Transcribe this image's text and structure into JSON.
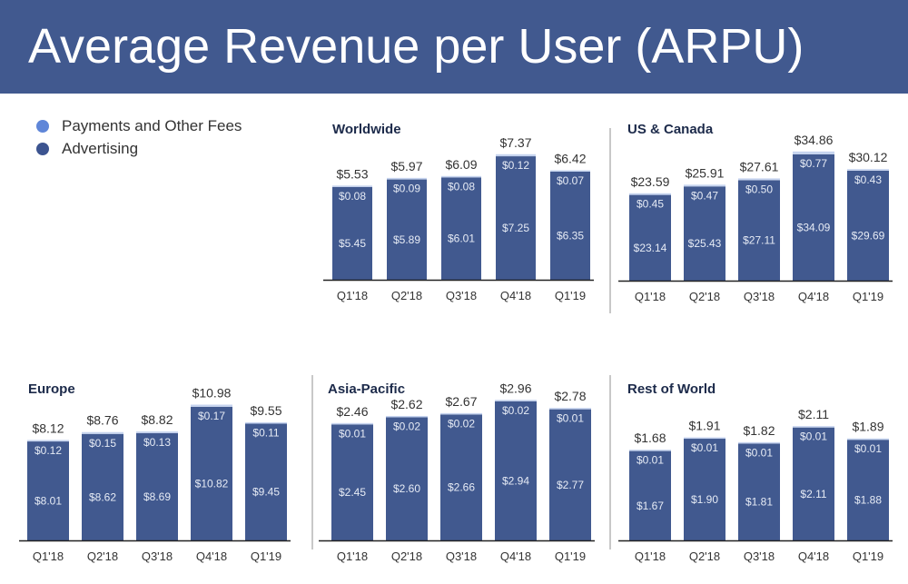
{
  "header": {
    "title": "Average Revenue per User (ARPU)"
  },
  "colors": {
    "advertising": "#41598f",
    "payments": "#c6d4ef",
    "legend_payments": "#5f86d8",
    "legend_advertising": "#3c5490"
  },
  "legend": [
    {
      "label": "Payments and Other Fees",
      "key": "payments"
    },
    {
      "label": "Advertising",
      "key": "advertising"
    }
  ],
  "chart_data": [
    {
      "type": "bar",
      "stacked": true,
      "title": "Worldwide",
      "categories": [
        "Q1'18",
        "Q2'18",
        "Q3'18",
        "Q4'18",
        "Q1'19"
      ],
      "series": [
        {
          "name": "Advertising",
          "values": [
            5.45,
            5.89,
            6.01,
            7.25,
            6.35
          ],
          "labels": [
            "$5.45",
            "$5.89",
            "$6.01",
            "$7.25",
            "$6.35"
          ]
        },
        {
          "name": "Payments and Other Fees",
          "values": [
            0.08,
            0.09,
            0.08,
            0.12,
            0.07
          ],
          "labels": [
            "$0.08",
            "$0.09",
            "$0.08",
            "$0.12",
            "$0.07"
          ]
        }
      ],
      "totals": [
        "$5.53",
        "$5.97",
        "$6.09",
        "$7.37",
        "$6.42"
      ],
      "total_values": [
        5.53,
        5.97,
        6.09,
        7.37,
        6.42
      ],
      "ylim": [
        0,
        8.0
      ]
    },
    {
      "type": "bar",
      "stacked": true,
      "title": "US & Canada",
      "categories": [
        "Q1'18",
        "Q2'18",
        "Q3'18",
        "Q4'18",
        "Q1'19"
      ],
      "series": [
        {
          "name": "Advertising",
          "values": [
            23.14,
            25.43,
            27.11,
            34.09,
            29.69
          ],
          "labels": [
            "$23.14",
            "$25.43",
            "$27.11",
            "$34.09",
            "$29.69"
          ]
        },
        {
          "name": "Payments and Other Fees",
          "values": [
            0.45,
            0.47,
            0.5,
            0.77,
            0.43
          ],
          "labels": [
            "$0.45",
            "$0.47",
            "$0.50",
            "$0.77",
            "$0.43"
          ]
        }
      ],
      "totals": [
        "$23.59",
        "$25.91",
        "$27.61",
        "$34.86",
        "$30.12"
      ],
      "total_values": [
        23.59,
        25.91,
        27.61,
        34.86,
        30.12
      ],
      "ylim": [
        0,
        38.0
      ]
    },
    {
      "type": "bar",
      "stacked": true,
      "title": "Europe",
      "categories": [
        "Q1'18",
        "Q2'18",
        "Q3'18",
        "Q4'18",
        "Q1'19"
      ],
      "series": [
        {
          "name": "Advertising",
          "values": [
            8.01,
            8.62,
            8.69,
            10.82,
            9.45
          ],
          "labels": [
            "$8.01",
            "$8.62",
            "$8.69",
            "$10.82",
            "$9.45"
          ]
        },
        {
          "name": "Payments and Other Fees",
          "values": [
            0.12,
            0.15,
            0.13,
            0.17,
            0.11
          ],
          "labels": [
            "$0.12",
            "$0.15",
            "$0.13",
            "$0.17",
            "$0.11"
          ]
        }
      ],
      "totals": [
        "$8.12",
        "$8.76",
        "$8.82",
        "$10.98",
        "$9.55"
      ],
      "total_values": [
        8.12,
        8.76,
        8.82,
        10.98,
        9.55
      ],
      "ylim": [
        0,
        12.5
      ]
    },
    {
      "type": "bar",
      "stacked": true,
      "title": "Asia-Pacific",
      "categories": [
        "Q1'18",
        "Q2'18",
        "Q3'18",
        "Q4'18",
        "Q1'19"
      ],
      "series": [
        {
          "name": "Advertising",
          "values": [
            2.45,
            2.6,
            2.66,
            2.94,
            2.77
          ],
          "labels": [
            "$2.45",
            "$2.60",
            "$2.66",
            "$2.94",
            "$2.77"
          ]
        },
        {
          "name": "Payments and Other Fees",
          "values": [
            0.01,
            0.02,
            0.02,
            0.02,
            0.01
          ],
          "labels": [
            "$0.01",
            "$0.02",
            "$0.02",
            "$0.02",
            "$0.01"
          ]
        }
      ],
      "totals": [
        "$2.46",
        "$2.62",
        "$2.67",
        "$2.96",
        "$2.78"
      ],
      "total_values": [
        2.46,
        2.62,
        2.67,
        2.96,
        2.78
      ],
      "ylim": [
        0,
        3.3
      ]
    },
    {
      "type": "bar",
      "stacked": true,
      "title": "Rest of World",
      "categories": [
        "Q1'18",
        "Q2'18",
        "Q3'18",
        "Q4'18",
        "Q1'19"
      ],
      "series": [
        {
          "name": "Advertising",
          "values": [
            1.67,
            1.9,
            1.81,
            2.11,
            1.88
          ],
          "labels": [
            "$1.67",
            "$1.90",
            "$1.81",
            "$2.11",
            "$1.88"
          ]
        },
        {
          "name": "Payments and Other Fees",
          "values": [
            0.01,
            0.01,
            0.01,
            0.01,
            0.01
          ],
          "labels": [
            "$0.01",
            "$0.01",
            "$0.01",
            "$0.01",
            "$0.01"
          ]
        }
      ],
      "totals": [
        "$1.68",
        "$1.91",
        "$1.82",
        "$2.11",
        "$1.89"
      ],
      "total_values": [
        1.68,
        1.91,
        1.82,
        2.11,
        1.89
      ],
      "ylim": [
        0,
        2.8
      ]
    }
  ]
}
